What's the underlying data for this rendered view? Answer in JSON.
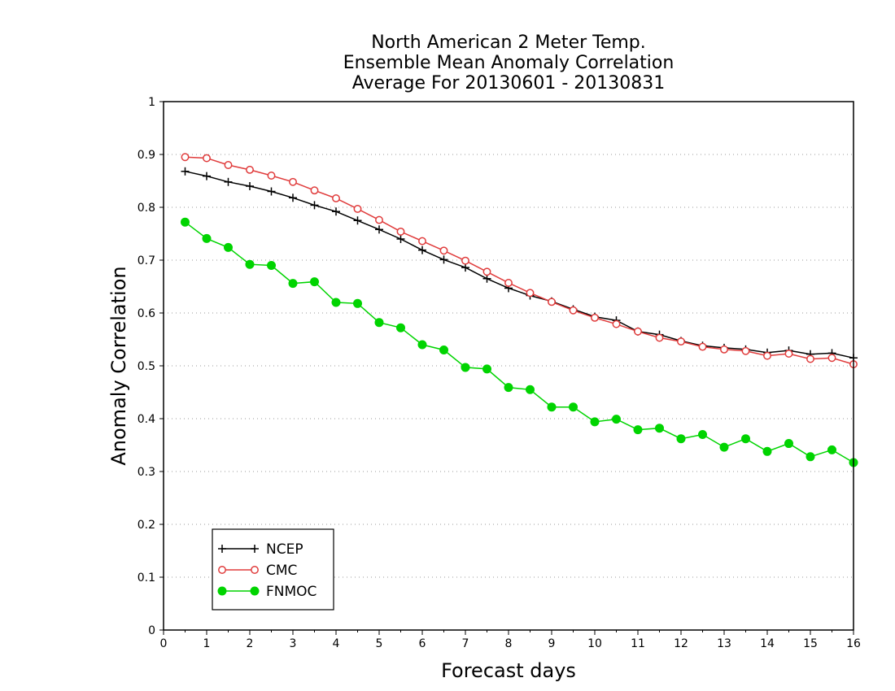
{
  "chart_data": {
    "type": "line",
    "title": [
      "North American 2 Meter Temp.",
      "Ensemble Mean Anomaly Correlation",
      "Average For 20130601 - 20130831"
    ],
    "xlabel": "Forecast days",
    "ylabel": "Anomaly Correlation",
    "xlim": [
      0,
      16
    ],
    "ylim": [
      0,
      1
    ],
    "xticks": [
      "0",
      "1",
      "2",
      "3",
      "4",
      "5",
      "6",
      "7",
      "8",
      "9",
      "10",
      "11",
      "12",
      "13",
      "14",
      "15",
      "16"
    ],
    "yticks": [
      "0",
      "0.1",
      "0.2",
      "0.3",
      "0.4",
      "0.5",
      "0.6",
      "0.7",
      "0.8",
      "0.9",
      "1"
    ],
    "grid": "horizontal dotted",
    "legend_position": "bottom-left",
    "x": [
      0.5,
      1,
      1.5,
      2,
      2.5,
      3,
      3.5,
      4,
      4.5,
      5,
      5.5,
      6,
      6.5,
      7,
      7.5,
      8,
      8.5,
      9,
      9.5,
      10,
      10.5,
      11,
      11.5,
      12,
      12.5,
      13,
      13.5,
      14,
      14.5,
      15,
      15.5,
      16
    ],
    "series": [
      {
        "name": "NCEP",
        "color": "#000000",
        "marker": "plus",
        "values": [
          0.868,
          0.859,
          0.848,
          0.84,
          0.83,
          0.818,
          0.804,
          0.792,
          0.775,
          0.758,
          0.74,
          0.719,
          0.701,
          0.686,
          0.665,
          0.647,
          0.633,
          0.622,
          0.607,
          0.593,
          0.586,
          0.565,
          0.559,
          0.547,
          0.538,
          0.534,
          0.531,
          0.525,
          0.529,
          0.522,
          0.524,
          0.515
        ]
      },
      {
        "name": "CMC",
        "color": "#e03c3c",
        "marker": "open-circle",
        "values": [
          0.895,
          0.893,
          0.88,
          0.871,
          0.86,
          0.848,
          0.832,
          0.817,
          0.797,
          0.776,
          0.754,
          0.736,
          0.718,
          0.699,
          0.678,
          0.657,
          0.638,
          0.621,
          0.605,
          0.591,
          0.579,
          0.565,
          0.553,
          0.546,
          0.536,
          0.531,
          0.528,
          0.519,
          0.523,
          0.513,
          0.515,
          0.503
        ]
      },
      {
        "name": "FNMOC",
        "color": "#00d400",
        "marker": "filled-circle",
        "values": [
          0.772,
          0.741,
          0.724,
          0.692,
          0.69,
          0.656,
          0.659,
          0.62,
          0.618,
          0.582,
          0.572,
          0.54,
          0.53,
          0.497,
          0.494,
          0.459,
          0.455,
          0.422,
          0.422,
          0.394,
          0.399,
          0.379,
          0.382,
          0.362,
          0.37,
          0.346,
          0.362,
          0.338,
          0.353,
          0.328,
          0.341,
          0.317
        ]
      }
    ]
  }
}
